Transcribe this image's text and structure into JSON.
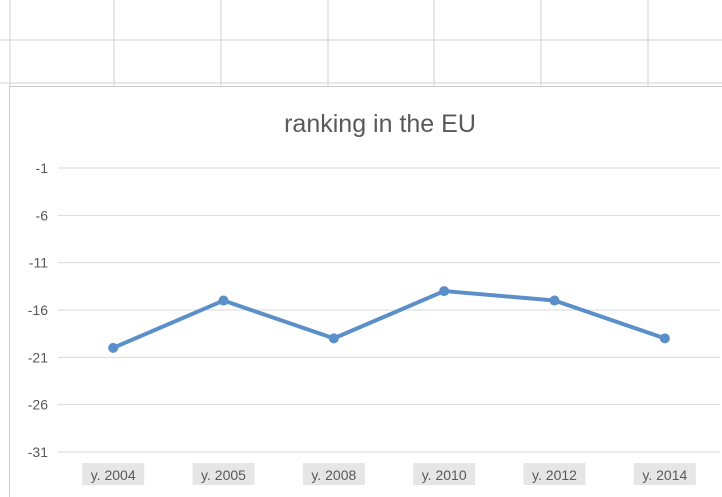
{
  "chart_data": {
    "type": "line",
    "title": "ranking in the EU",
    "xlabel": "",
    "ylabel": "",
    "categories": [
      "y. 2004",
      "y. 2005",
      "y. 2008",
      "y. 2010",
      "y. 2012",
      "y. 2014"
    ],
    "series": [
      {
        "values": [
          -20,
          -15,
          -19,
          -14,
          -15,
          -19
        ]
      }
    ],
    "yticks": [
      -1,
      -6,
      -11,
      -16,
      -21,
      -26,
      -31
    ],
    "ylim": [
      -31,
      -1
    ],
    "grid": true,
    "legend": "none",
    "colors": {
      "series": "#5b8fc9",
      "grid": "#d9d9d9",
      "text": "#595959"
    }
  }
}
